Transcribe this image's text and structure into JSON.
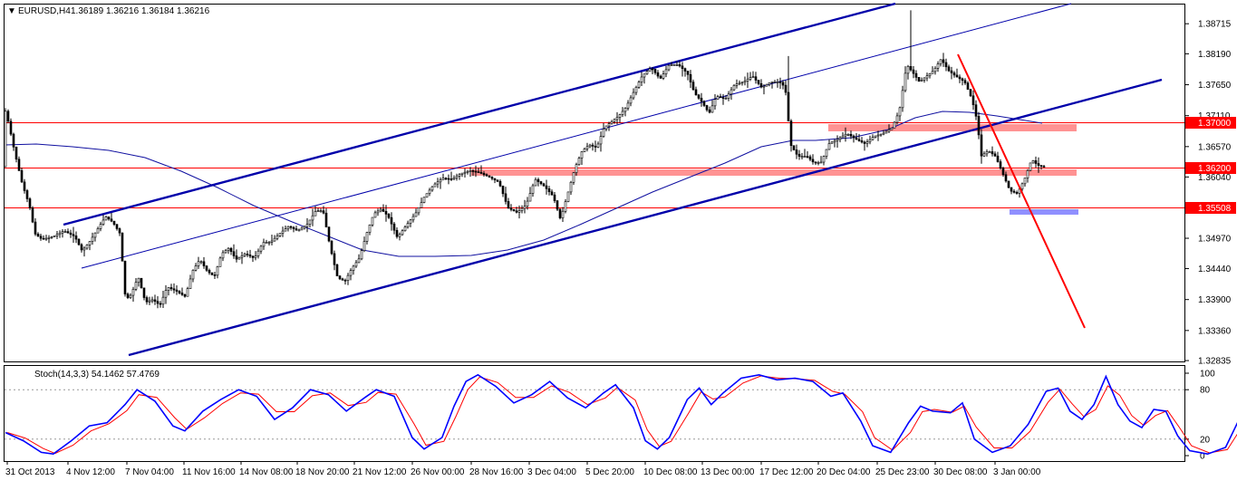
{
  "chart_data": [
    {
      "type": "candlestick",
      "symbol_label": "EURUSD,H4",
      "quote": [
        "1.36189",
        "1.36216",
        "1.36184",
        "1.36216"
      ],
      "y_ticks": [
        "1.38715",
        "1.38190",
        "1.37650",
        "1.37110",
        "1.36570",
        "1.36040",
        "1.35500",
        "1.34970",
        "1.34440",
        "1.33900",
        "1.33360",
        "1.32835"
      ],
      "ylim": [
        1.3282,
        1.3905
      ],
      "x_ticks": [
        "31 Oct 2013",
        "4 Nov 12:00",
        "7 Nov 04:00",
        "11 Nov 16:00",
        "14 Nov 08:00",
        "18 Nov 20:00",
        "21 Nov 12:00",
        "26 Nov 00:00",
        "28 Nov 16:00",
        "3 Dec 04:00",
        "5 Dec 20:00",
        "10 Dec 08:00",
        "13 Dec 00:00",
        "17 Dec 12:00",
        "20 Dec 04:00",
        "25 Dec 23:00",
        "30 Dec 08:00",
        "3 Jan 00:00"
      ],
      "horizontal_levels": [
        {
          "value": 1.37,
          "label": "1.37000",
          "color": "#ff0000"
        },
        {
          "value": 1.362,
          "label": "1.36200",
          "color": "#ff0000"
        },
        {
          "value": 1.35508,
          "label": "1.35508",
          "color": "#ff0000"
        }
      ],
      "channel_color": "#0000aa",
      "trendline_color": "#ff0000",
      "ma_color": "#0000aa",
      "zone_color": "#ff6666",
      "target_color": "#6666ff",
      "up_color": "#ffffff",
      "down_color": "#000000"
    },
    {
      "type": "line",
      "label": "Stoch(14,3,3) 54.1462 57.4769",
      "y_ticks": [
        "100",
        "80",
        "20",
        "0"
      ],
      "ylim": [
        0,
        100
      ],
      "series": [
        {
          "color": "#0000ff"
        },
        {
          "color": "#ff0000"
        }
      ],
      "waypoints": [
        [
          0,
          28
        ],
        [
          6,
          18
        ],
        [
          12,
          4
        ],
        [
          16,
          2
        ],
        [
          22,
          18
        ],
        [
          28,
          36
        ],
        [
          34,
          40
        ],
        [
          40,
          62
        ],
        [
          44,
          80
        ],
        [
          50,
          66
        ],
        [
          56,
          36
        ],
        [
          60,
          30
        ],
        [
          66,
          54
        ],
        [
          72,
          68
        ],
        [
          78,
          80
        ],
        [
          84,
          72
        ],
        [
          90,
          44
        ],
        [
          96,
          58
        ],
        [
          102,
          80
        ],
        [
          108,
          74
        ],
        [
          114,
          54
        ],
        [
          120,
          70
        ],
        [
          124,
          80
        ],
        [
          130,
          72
        ],
        [
          136,
          22
        ],
        [
          140,
          8
        ],
        [
          146,
          22
        ],
        [
          150,
          60
        ],
        [
          154,
          90
        ],
        [
          158,
          98
        ],
        [
          164,
          84
        ],
        [
          170,
          64
        ],
        [
          176,
          74
        ],
        [
          182,
          90
        ],
        [
          188,
          70
        ],
        [
          194,
          58
        ],
        [
          200,
          76
        ],
        [
          204,
          86
        ],
        [
          210,
          58
        ],
        [
          214,
          18
        ],
        [
          218,
          8
        ],
        [
          222,
          22
        ],
        [
          228,
          68
        ],
        [
          232,
          82
        ],
        [
          236,
          62
        ],
        [
          240,
          76
        ],
        [
          246,
          94
        ],
        [
          252,
          98
        ],
        [
          258,
          92
        ],
        [
          264,
          94
        ],
        [
          270,
          90
        ],
        [
          276,
          72
        ],
        [
          280,
          76
        ],
        [
          286,
          42
        ],
        [
          290,
          12
        ],
        [
          296,
          4
        ],
        [
          302,
          40
        ],
        [
          306,
          60
        ],
        [
          310,
          54
        ],
        [
          316,
          52
        ],
        [
          320,
          64
        ],
        [
          324,
          20
        ],
        [
          330,
          4
        ],
        [
          336,
          12
        ],
        [
          342,
          38
        ],
        [
          348,
          78
        ],
        [
          352,
          82
        ],
        [
          356,
          54
        ],
        [
          360,
          44
        ],
        [
          364,
          62
        ],
        [
          368,
          96
        ],
        [
          372,
          62
        ],
        [
          376,
          42
        ],
        [
          380,
          34
        ],
        [
          384,
          56
        ],
        [
          388,
          54
        ],
        [
          392,
          24
        ],
        [
          396,
          6
        ],
        [
          402,
          2
        ],
        [
          408,
          10
        ],
        [
          412,
          40
        ],
        [
          416,
          56
        ],
        [
          419,
          54
        ]
      ]
    }
  ]
}
